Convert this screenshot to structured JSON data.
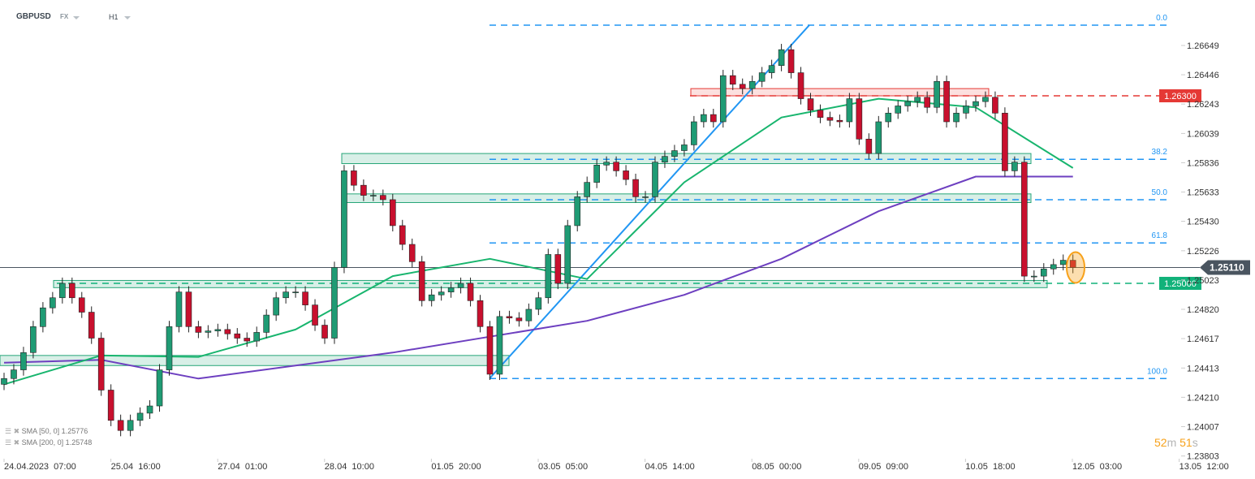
{
  "header": {
    "symbol": "GBPUSD",
    "market": "FX",
    "timeframe": "H1"
  },
  "legend": [
    {
      "label": "SMA [50, 0] 1.25776",
      "color": "#18b56e"
    },
    {
      "label": "SMA [200, 0] 1.25748",
      "color": "#6d3fc0"
    }
  ],
  "timer": {
    "minutes": "52",
    "m": "m",
    "seconds": "51",
    "s": "s"
  },
  "chart_data": {
    "type": "candlestick",
    "bar_interval": "3h",
    "x_ticks": [
      "24.04.2023  07:00",
      "25.04  16:00",
      "27.04  01:00",
      "28.04  10:00",
      "01.05  20:00",
      "03.05  05:00",
      "04.05  14:00",
      "08.05  00:00",
      "09.05  09:00",
      "10.05  18:00",
      "12.05  03:00",
      "13.05  12:00"
    ],
    "y_ticks": [
      "1.26649",
      "1.26446",
      "1.26243",
      "1.26039",
      "1.25836",
      "1.25633",
      "1.25430",
      "1.25226",
      "1.25023",
      "1.24820",
      "1.24617",
      "1.24413",
      "1.24210",
      "1.24007",
      "1.23803"
    ],
    "ylim": [
      1.2376,
      1.27
    ],
    "closes": [
      1.2434,
      1.244,
      1.2452,
      1.247,
      1.2483,
      1.249,
      1.25,
      1.249,
      1.248,
      1.2462,
      1.2426,
      1.2405,
      1.2398,
      1.2405,
      1.241,
      1.2415,
      1.244,
      1.247,
      1.2494,
      1.247,
      1.2466,
      1.2467,
      1.2468,
      1.2465,
      1.2462,
      1.246,
      1.2466,
      1.2478,
      1.249,
      1.2494,
      1.2494,
      1.2485,
      1.2471,
      1.2462,
      1.2511,
      1.2578,
      1.2568,
      1.2561,
      1.2561,
      1.2558,
      1.254,
      1.2527,
      1.2515,
      1.2488,
      1.2492,
      1.2494,
      1.2497,
      1.25,
      1.2488,
      1.247,
      1.2437,
      1.2477,
      1.2476,
      1.2474,
      1.2482,
      1.249,
      1.252,
      1.25,
      1.254,
      1.256,
      1.257,
      1.2582,
      1.2584,
      1.2578,
      1.2572,
      1.256,
      1.256,
      1.2584,
      1.2588,
      1.2592,
      1.2596,
      1.2612,
      1.2617,
      1.2612,
      1.2644,
      1.2638,
      1.2635,
      1.264,
      1.2646,
      1.2651,
      1.2662,
      1.2646,
      1.2628,
      1.262,
      1.2615,
      1.2613,
      1.2612,
      1.2628,
      1.26,
      1.259,
      1.2612,
      1.2618,
      1.2623,
      1.2626,
      1.2629,
      1.2622,
      1.264,
      1.2612,
      1.2618,
      1.2623,
      1.2626,
      1.2629,
      1.2618,
      1.2578,
      1.2584,
      1.2505,
      1.2505,
      1.251,
      1.2513,
      1.2516,
      1.2511
    ],
    "sma50_every_10_bars": [
      1.243,
      1.245,
      1.2449,
      1.2468,
      1.2505,
      1.2517,
      1.2503,
      1.257,
      1.2615,
      1.2628,
      1.2622,
      1.258
    ],
    "sma200_every_10_bars": [
      1.2445,
      1.2447,
      1.2434,
      1.2443,
      1.2452,
      1.2463,
      1.2474,
      1.2492,
      1.2517,
      1.255,
      1.2574,
      1.2574
    ],
    "fib_levels": [
      {
        "label": "0.0",
        "price": 1.2679
      },
      {
        "label": "38.2",
        "price": 1.2586
      },
      {
        "label": "50.0",
        "price": 1.2558
      },
      {
        "label": "61.8",
        "price": 1.2528
      },
      {
        "label": "100.0",
        "price": 1.2434
      }
    ],
    "levels": [
      {
        "label": "1.26300",
        "price": 1.263,
        "color": "#e53935"
      },
      {
        "label": "1.25000",
        "price": 1.25,
        "color": "#11b27a"
      }
    ],
    "current_price": {
      "label": "1.25110",
      "price": 1.2511,
      "color": "#4a5560"
    },
    "zones": [
      {
        "low": 1.2443,
        "high": 1.245,
        "color": "green"
      },
      {
        "low": 1.2497,
        "high": 1.2502,
        "color": "green"
      },
      {
        "low": 1.2556,
        "high": 1.2562,
        "color": "green"
      },
      {
        "low": 1.2583,
        "high": 1.259,
        "color": "green"
      },
      {
        "low": 1.263,
        "high": 1.2635,
        "color": "red"
      }
    ],
    "colors": {
      "up": "#1f9b74",
      "down": "#c8102e",
      "fib": "#2196f3",
      "trendline": "#2196f3",
      "highlight": "#f7a11a"
    }
  }
}
